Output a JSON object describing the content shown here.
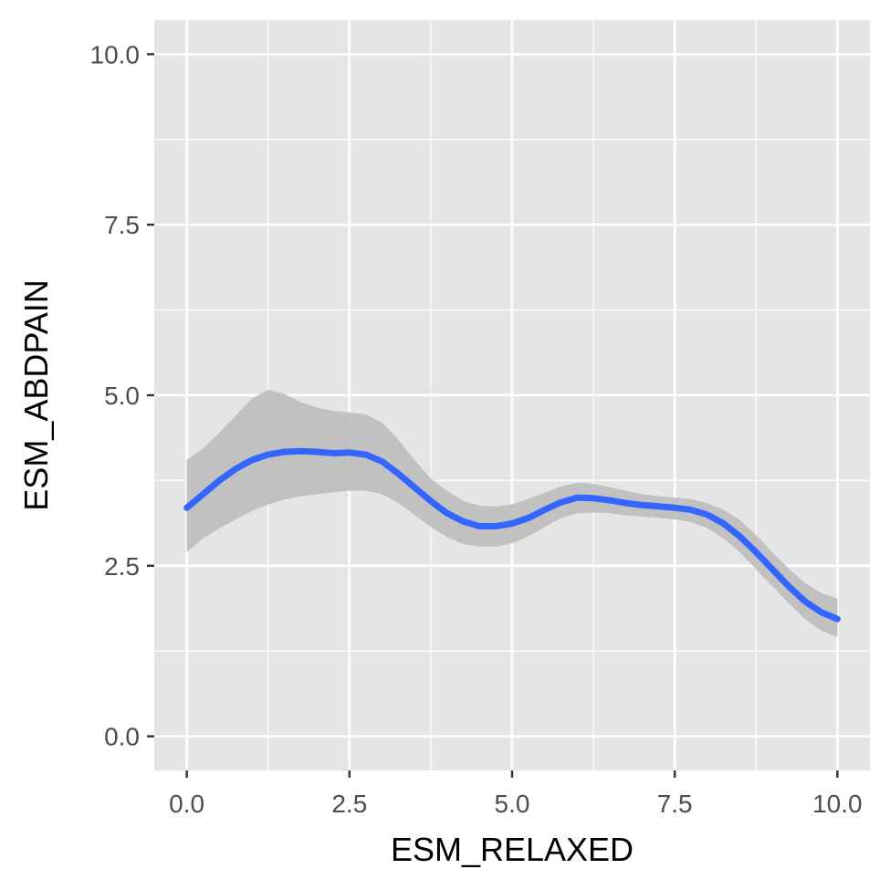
{
  "chart_data": {
    "type": "line",
    "title": "",
    "xlabel": "ESM_RELAXED",
    "ylabel": "ESM_ABDPAIN",
    "xlim": [
      -0.5,
      10.5
    ],
    "ylim": [
      -0.5,
      10.5
    ],
    "grid": true,
    "x_ticks": [
      0,
      2.5,
      5,
      7.5,
      10
    ],
    "x_tick_labels": [
      "0.0",
      "2.5",
      "5.0",
      "7.5",
      "10.0"
    ],
    "y_ticks": [
      0,
      2.5,
      5,
      7.5,
      10
    ],
    "y_tick_labels": [
      "0.0",
      "2.5",
      "5.0",
      "7.5",
      "10.0"
    ],
    "colors": {
      "panel": "#e5e5e5",
      "grid": "#ffffff",
      "line": "#3366ff",
      "ribbon": "#bdbdbd"
    },
    "series": [
      {
        "x": [
          0,
          0.25,
          0.5,
          0.75,
          1.0,
          1.25,
          1.5,
          1.75,
          2.0,
          2.25,
          2.5,
          2.75,
          3.0,
          3.25,
          3.5,
          3.75,
          4.0,
          4.25,
          4.5,
          4.75,
          5.0,
          5.25,
          5.5,
          5.75,
          6.0,
          6.25,
          6.5,
          6.75,
          7.0,
          7.25,
          7.5,
          7.75,
          8.0,
          8.25,
          8.5,
          8.75,
          9.0,
          9.25,
          9.5,
          9.75,
          10.0
        ],
        "y": [
          3.35,
          3.55,
          3.75,
          3.92,
          4.05,
          4.13,
          4.17,
          4.18,
          4.17,
          4.15,
          4.16,
          4.13,
          4.03,
          3.85,
          3.65,
          3.45,
          3.27,
          3.15,
          3.08,
          3.08,
          3.12,
          3.2,
          3.32,
          3.43,
          3.5,
          3.49,
          3.46,
          3.42,
          3.39,
          3.37,
          3.35,
          3.32,
          3.25,
          3.12,
          2.93,
          2.7,
          2.45,
          2.2,
          1.98,
          1.82,
          1.72
        ],
        "lower": [
          2.7,
          2.9,
          3.05,
          3.18,
          3.3,
          3.4,
          3.47,
          3.52,
          3.55,
          3.58,
          3.6,
          3.6,
          3.55,
          3.42,
          3.25,
          3.07,
          2.92,
          2.82,
          2.78,
          2.78,
          2.83,
          2.93,
          3.07,
          3.2,
          3.27,
          3.28,
          3.27,
          3.24,
          3.22,
          3.2,
          3.18,
          3.14,
          3.05,
          2.9,
          2.7,
          2.45,
          2.2,
          1.95,
          1.72,
          1.55,
          1.45
        ],
        "upper": [
          4.05,
          4.22,
          4.45,
          4.7,
          4.95,
          5.08,
          5.02,
          4.9,
          4.82,
          4.77,
          4.75,
          4.72,
          4.6,
          4.35,
          4.05,
          3.78,
          3.6,
          3.45,
          3.38,
          3.37,
          3.4,
          3.48,
          3.57,
          3.66,
          3.72,
          3.7,
          3.65,
          3.6,
          3.55,
          3.52,
          3.5,
          3.48,
          3.42,
          3.32,
          3.17,
          2.95,
          2.7,
          2.46,
          2.25,
          2.1,
          2.02
        ]
      }
    ]
  }
}
